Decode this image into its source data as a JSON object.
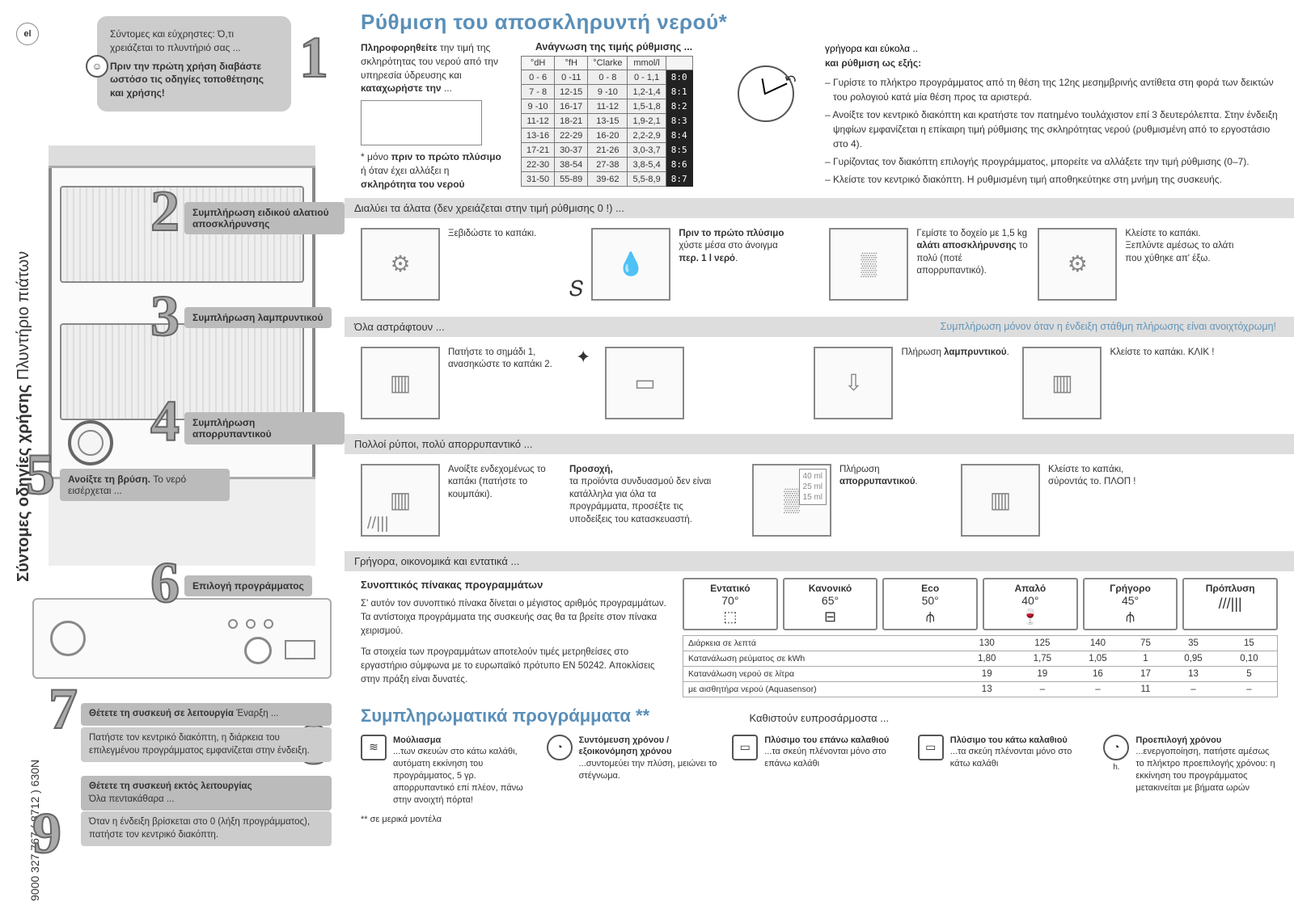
{
  "lang": "el",
  "doc_number": "9000 327 767 ( 8712 )   630N",
  "side_title_bold": "Σύντομες οδηγίες χρήσης",
  "side_title_light": "Πλυντήριο πιάτων",
  "intro": {
    "l1": "Σύντομες και εύχρηστες: Ό,τι χρειάζεται το πλυντήριό σας ...",
    "l2": "Πριν την πρώτη χρήση διαβάστε ωστόσο τις οδηγίες τοποθέτησης και χρήσης!"
  },
  "steps": {
    "s2": "Συμπλήρωση ειδικού αλατιού αποσκλήρυνσης",
    "s3": "Συμπλήρωση λαμπρυντικού",
    "s4": "Συμπλήρωση απορρυπαντικού",
    "s5a": "Ανοίξτε τη βρύση.",
    "s5b": "Το νερό εισέρχεται ...",
    "s6": "Επιλογή προγράμματος",
    "s7a": "Θέτετε τη συσκευή σε λειτουργία",
    "s7b": "Έναρξη ...",
    "s7c": "Πατήστε τον κεντρικό διακόπτη, η διάρκεια του επιλεγμένου προγράμματος εμφανίζεται στην ένδειξη.",
    "s9a": "Θέτετε τη συσκευή εκτός λειτουργίας",
    "s9b": "Όλα πεντακάθαρα ...",
    "s9c": "Όταν η ένδειξη βρίσκεται στο 0 (λήξη προγράμματος), πατήστε τον κεντρικό διακόπτη."
  },
  "sec1": {
    "title": "Ρύθμιση του αποσκληρυντή νερού*",
    "left1": "Πληροφορηθείτε",
    "left1b": " την τιμή της σκληρότητας του νερού από την υπηρεσία ύδρευσης και ",
    "left1c": "καταχωρήστε την",
    "left2": "* μόνο ",
    "left2b": "πριν το πρώτο πλύσιμο",
    "left2c": " ή όταν έχει αλλάξει η ",
    "left2d": "σκληρότητα του νερού",
    "mid_sub": "Ανάγνωση της τιμής ρύθμισης ...",
    "cols": [
      "°dH",
      "°fH",
      "°Clarke",
      "mmol/l",
      ""
    ],
    "rows": [
      [
        "0 - 6",
        "0 -11",
        "0 - 8",
        "0 - 1,1",
        "8:0"
      ],
      [
        "7 - 8",
        "12-15",
        "9 -10",
        "1,2-1,4",
        "8:1"
      ],
      [
        "9 -10",
        "16-17",
        "11-12",
        "1,5-1,8",
        "8:2"
      ],
      [
        "11-12",
        "18-21",
        "13-15",
        "1,9-2,1",
        "8:3"
      ],
      [
        "13-16",
        "22-29",
        "16-20",
        "2,2-2,9",
        "8:4"
      ],
      [
        "17-21",
        "30-37",
        "21-26",
        "3,0-3,7",
        "8:5"
      ],
      [
        "22-30",
        "38-54",
        "27-38",
        "3,8-5,4",
        "8:6"
      ],
      [
        "31-50",
        "55-89",
        "39-62",
        "5,5-8,9",
        "8:7"
      ]
    ],
    "right_fast": "γρήγορα και εύκολα  ..",
    "right_head": "και ρύθμιση ως εξής:",
    "right_items": [
      "Γυρίστε το πλήκτρο προγράμματος από τη θέση της 12ης μεσημβρινής αντίθετα στη φορά των δεικτών του ρολογιού κατά μία θέση προς τα αριστερά.",
      "Ανοίξτε τον κεντρικό διακόπτη και κρατήστε τον πατημένο τουλάχιστον επί 3 δευτερόλεπτα. Στην ένδειξη ψηφίων εμφανίζεται η επίκαιρη τιμή ρύθμισης της σκληρότητας νερού (ρυθμισμένη από το εργοστάσιο στο 4).",
      "Γυρίζοντας τον διακόπτη επιλογής προγράμματος, μπορείτε να αλλάξετε την τιμή ρύθμισης (0–7).",
      "Κλείστε τον κεντρικό διακόπτη. Η ρυθμισμένη τιμή αποθηκεύτηκε στη μνήμη της συσκευής."
    ]
  },
  "band2": "Διαλύει τα άλατα (δεν χρειάζεται στην τιμή ρύθμισης 0 !) ...",
  "salt": {
    "a": "Ξεβιδώστε το καπάκι.",
    "b": "Πριν το πρώτο πλύσιμο",
    "b2": " χύστε μέσα στο άνοιγμα ",
    "b3": "περ. 1 l νερό",
    "c": "Γεμίστε το δοχείο με 1,5 kg ",
    "c2": "αλάτι αποσκλήρυνσης",
    "c3": " το πολύ (ποτέ απορρυπαντικό).",
    "d": "Κλείστε το καπάκι. Ξεπλύντε αμέσως το αλάτι που χύθηκε απ' έξω."
  },
  "band3": "Όλα αστράφτουν ...",
  "band3r": "Συμπλήρωση μόνον όταν η ένδειξη στάθμη πλήρωσης είναι ανοιχτόχρωμη!",
  "rinse": {
    "a": "Πατήστε το σημάδι 1, ανασηκώστε το καπάκι 2.",
    "b": "Πλήρωση ",
    "b2": "λαμπρυντικού",
    "c": "Κλείστε το καπάκι. ΚΛΙΚ !"
  },
  "band4": "Πολλοί ρύποι, πολύ απορρυπαντικό ...",
  "det": {
    "a": "Ανοίξτε ενδεχομένως το καπάκι (πατήστε το κουμπάκι).",
    "warn_t": "Προσοχή,",
    "warn": "τα προϊόντα συνδυασμού δεν είναι κατάλληλα για όλα τα προγράμματα, προσέξτε τις υποδείξεις του κατασκευαστή.",
    "ml": [
      "40 ml",
      "25 ml",
      "15 ml"
    ],
    "b": "Πλήρωση ",
    "b2": "απορρυπαντικού",
    "c": "Κλείστε το καπάκι, σύροντάς το. ΠΛΟΠ !"
  },
  "band6": "Γρήγορα, οικονομικά και εντατικά ...",
  "prog": {
    "title": "Συνοπτικός πίνακας προγραμμάτων",
    "p1": "Σ' αυτόν τον συνοπτικό πίνακα δίνεται ο μέγιστος αριθμός προγραμμάτων. Τα αντίστοιχα προγράμματα της συσκευής σας θα τα βρείτε στον πίνακα χειρισμού.",
    "p2": "Τα στοιχεία των προγραμμάτων αποτελούν τιμές μετρηθείσες στο εργαστήριο σύμφωνα με το ευρωπαϊκό πρότυπο EN 50242. Αποκλίσεις στην πράξη είναι δυνατές.",
    "cols": [
      {
        "n": "Εντατικό",
        "d": "70°",
        "i": "⬚"
      },
      {
        "n": "Κανονικό",
        "d": "65°",
        "i": "⊟"
      },
      {
        "n": "Eco",
        "d": "50°",
        "i": "⫛"
      },
      {
        "n": "Απαλό",
        "d": "40°",
        "i": "🍷"
      },
      {
        "n": "Γρήγορο",
        "d": "45°",
        "i": "⫛"
      },
      {
        "n": "Πρόπλυση",
        "d": "",
        "i": "///|||"
      }
    ],
    "rows": [
      {
        "l": "Διάρκεια σε λεπτά",
        "v": [
          "130",
          "125",
          "140",
          "75",
          "35",
          "15"
        ]
      },
      {
        "l": "Κατανάλωση ρεύματος σε kWh",
        "v": [
          "1,80",
          "1,75",
          "1,05",
          "1",
          "0,95",
          "0,10"
        ]
      },
      {
        "l": "Κατανάλωση νερού σε λίτρα",
        "v": [
          "19",
          "19",
          "16",
          "17",
          "13",
          "5"
        ]
      },
      {
        "l": "με αισθητήρα νερού (Aquasensor)",
        "v": [
          "13",
          "–",
          "–",
          "11",
          "–",
          "–"
        ]
      }
    ]
  },
  "sec8": {
    "title": "Συμπληρωματικά προγράμματα **",
    "tag": "Καθιστούν ευπροσάρμοστα ...",
    "opts": [
      {
        "t": "Μούλιασμα",
        "d": "...των σκευών στο κάτω καλάθι, αυτόματη εκκίνηση του προγράμματος, 5 γρ. απορρυπαντικό επί πλέον, πάνω στην ανοιχτή πόρτα!"
      },
      {
        "t": "Συντόμευση χρόνου / εξοικονόμηση χρόνου",
        "d": "...συντομεύει την πλύση, μειώνει το στέγνωμα."
      },
      {
        "t": "Πλύσιμο του επάνω καλαθιού",
        "d": "...τα σκεύη πλένονται μόνο στο επάνω καλάθι"
      },
      {
        "t": "Πλύσιμο του κάτω καλαθιού",
        "d": "...τα σκεύη πλένονται μόνο στο κάτω καλάθι"
      },
      {
        "t": "Προεπιλογή χρόνου",
        "d": "...ενεργοποίηση, πατήστε αμέσως το πλήκτρο προεπιλογής χρόνου: η εκκίνηση του προγράμματος μετακινείται με βήματα ωρών"
      }
    ],
    "foot": "** σε μερικά μοντέλα"
  }
}
